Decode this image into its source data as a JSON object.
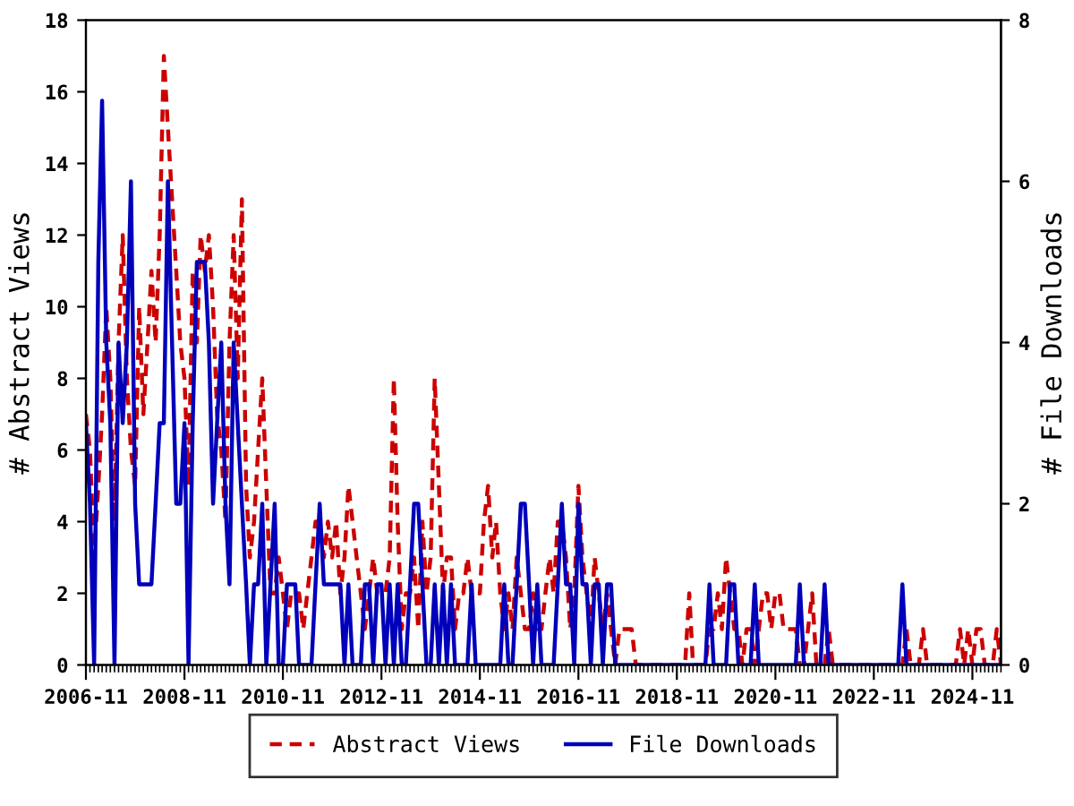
{
  "chart_data": {
    "type": "line",
    "ylabel": "# Abstract Views",
    "y2label": "# File Downloads",
    "x": [
      "2006-11",
      "2006-12",
      "2007-01",
      "2007-02",
      "2007-03",
      "2007-04",
      "2007-05",
      "2007-06",
      "2007-07",
      "2007-08",
      "2007-09",
      "2007-10",
      "2007-11",
      "2007-12",
      "2008-01",
      "2008-02",
      "2008-03",
      "2008-04",
      "2008-05",
      "2008-06",
      "2008-07",
      "2008-08",
      "2008-09",
      "2008-10",
      "2008-11",
      "2008-12",
      "2009-01",
      "2009-02",
      "2009-03",
      "2009-04",
      "2009-05",
      "2009-06",
      "2009-07",
      "2009-08",
      "2009-09",
      "2009-10",
      "2009-11",
      "2009-12",
      "2010-01",
      "2010-02",
      "2010-03",
      "2010-04",
      "2010-05",
      "2010-06",
      "2010-07",
      "2010-08",
      "2010-09",
      "2010-10",
      "2010-11",
      "2010-12",
      "2011-01",
      "2011-02",
      "2011-03",
      "2011-04",
      "2011-05",
      "2011-06",
      "2011-07",
      "2011-08",
      "2011-09",
      "2011-10",
      "2011-11",
      "2011-12",
      "2012-01",
      "2012-02",
      "2012-03",
      "2012-04",
      "2012-05",
      "2012-06",
      "2012-07",
      "2012-08",
      "2012-09",
      "2012-10",
      "2012-11",
      "2012-12",
      "2013-01",
      "2013-02",
      "2013-03",
      "2013-04",
      "2013-05",
      "2013-06",
      "2013-07",
      "2013-08",
      "2013-09",
      "2013-10",
      "2013-11",
      "2013-12",
      "2014-01",
      "2014-02",
      "2014-03",
      "2014-04",
      "2014-05",
      "2014-06",
      "2014-07",
      "2014-08",
      "2014-09",
      "2014-10",
      "2014-11",
      "2014-12",
      "2015-01",
      "2015-02",
      "2015-03",
      "2015-04",
      "2015-05",
      "2015-06",
      "2015-07",
      "2015-08",
      "2015-09",
      "2015-10",
      "2015-11",
      "2015-12",
      "2016-01",
      "2016-02",
      "2016-03",
      "2016-04",
      "2016-05",
      "2016-06",
      "2016-07",
      "2016-08",
      "2016-09",
      "2016-10",
      "2016-11",
      "2016-12",
      "2017-01",
      "2017-02",
      "2017-03",
      "2017-04",
      "2017-05",
      "2017-06",
      "2017-07",
      "2017-08",
      "2017-09",
      "2017-10",
      "2017-11",
      "2017-12",
      "2018-01",
      "2018-02",
      "2018-03",
      "2018-04",
      "2018-05",
      "2018-06",
      "2018-07",
      "2018-08",
      "2018-09",
      "2018-10",
      "2018-11",
      "2018-12",
      "2019-01",
      "2019-02",
      "2019-03",
      "2019-04",
      "2019-05",
      "2019-06",
      "2019-07",
      "2019-08",
      "2019-09",
      "2019-10",
      "2019-11",
      "2019-12",
      "2020-01",
      "2020-02",
      "2020-03",
      "2020-04",
      "2020-05",
      "2020-06",
      "2020-07",
      "2020-08",
      "2020-09",
      "2020-10",
      "2020-11",
      "2020-12",
      "2021-01",
      "2021-02",
      "2021-03",
      "2021-04",
      "2021-05",
      "2021-06",
      "2021-07",
      "2021-08",
      "2021-09",
      "2021-10",
      "2021-11",
      "2021-12",
      "2022-01",
      "2022-02",
      "2022-03",
      "2022-04",
      "2022-05",
      "2022-06",
      "2022-07",
      "2022-08",
      "2022-09",
      "2022-10",
      "2022-11",
      "2022-12",
      "2023-01",
      "2023-02",
      "2023-03",
      "2023-04",
      "2023-05",
      "2023-06",
      "2023-07",
      "2023-08",
      "2023-09",
      "2023-10",
      "2023-11",
      "2023-12",
      "2024-01",
      "2024-02",
      "2024-03",
      "2024-04",
      "2024-05",
      "2024-06",
      "2024-07",
      "2024-08",
      "2024-09",
      "2024-10",
      "2024-11",
      "2024-12",
      "2025-01",
      "2025-02",
      "2025-03",
      "2025-04",
      "2025-05",
      "2025-06"
    ],
    "series": [
      {
        "name": "Abstract Views",
        "color": "#cc0000",
        "line_style": "dashed",
        "values": [
          7,
          6,
          3,
          5,
          7,
          10,
          8,
          4,
          9,
          12,
          8,
          6,
          5,
          10,
          7,
          9,
          11,
          9,
          12,
          17,
          15,
          13,
          11,
          9,
          8,
          5,
          11,
          9,
          12,
          11,
          12,
          10,
          7,
          6,
          4,
          9,
          12,
          8,
          13,
          5,
          3,
          4,
          6,
          8,
          5,
          2,
          2,
          3,
          2,
          1,
          2,
          2,
          2,
          1,
          2,
          3,
          4,
          4,
          3,
          4,
          3,
          4,
          2,
          3,
          5,
          4,
          3,
          2,
          1,
          2,
          3,
          2,
          2,
          2,
          3,
          8,
          4,
          1,
          2,
          2,
          3,
          1,
          4,
          2,
          3,
          8,
          5,
          2,
          3,
          3,
          1,
          2,
          2,
          3,
          2,
          2,
          2,
          4,
          5,
          3,
          4,
          2,
          1,
          2,
          1,
          3,
          2,
          1,
          1,
          2,
          1,
          1,
          2,
          3,
          2,
          4,
          4,
          3,
          1,
          2,
          5,
          3,
          2,
          1,
          3,
          2,
          1,
          2,
          1,
          0,
          1,
          1,
          1,
          1,
          0,
          0,
          0,
          0,
          0,
          0,
          0,
          0,
          0,
          0,
          0,
          0,
          0,
          2,
          0,
          0,
          0,
          0,
          1,
          1,
          2,
          1,
          3,
          2,
          1,
          1,
          0,
          1,
          1,
          0,
          1,
          2,
          2,
          1,
          2,
          2,
          1,
          1,
          1,
          1,
          0,
          0,
          1,
          2,
          0,
          0,
          0,
          1,
          0,
          0,
          0,
          0,
          0,
          0,
          0,
          0,
          0,
          0,
          0,
          0,
          0,
          0,
          0,
          0,
          0,
          0,
          1,
          0,
          0,
          0,
          1,
          0,
          0,
          0,
          0,
          0,
          0,
          0,
          0,
          1,
          0,
          1,
          0,
          1,
          1,
          0,
          0,
          0,
          1,
          0
        ]
      },
      {
        "name": "File Downloads",
        "color": "#0000bb",
        "line_style": "solid",
        "axis": "y2",
        "values": [
          3,
          2,
          0,
          5,
          7,
          4,
          3,
          0,
          4,
          3,
          4,
          6,
          2,
          1,
          1,
          1,
          1,
          2,
          3,
          3,
          6,
          4,
          2,
          2,
          3,
          0,
          3,
          5,
          5,
          5,
          4,
          2,
          3,
          4,
          2,
          1,
          4,
          3,
          2,
          1,
          0,
          1,
          1,
          2,
          0,
          1,
          2,
          0,
          0,
          1,
          1,
          1,
          0,
          0,
          0,
          0,
          1,
          2,
          1,
          1,
          1,
          1,
          1,
          0,
          1,
          0,
          0,
          0,
          1,
          1,
          0,
          1,
          1,
          0,
          1,
          0,
          1,
          0,
          0,
          1,
          2,
          2,
          1,
          0,
          0,
          1,
          0,
          1,
          0,
          1,
          0,
          0,
          0,
          0,
          1,
          0,
          0,
          0,
          0,
          0,
          0,
          0,
          1,
          0,
          0,
          1,
          2,
          2,
          1,
          0,
          1,
          0,
          0,
          0,
          0,
          1,
          2,
          1,
          1,
          0,
          2,
          1,
          1,
          0,
          1,
          1,
          0,
          1,
          1,
          0,
          0,
          0,
          0,
          0,
          0,
          0,
          0,
          0,
          0,
          0,
          0,
          0,
          0,
          0,
          0,
          0,
          0,
          0,
          0,
          0,
          0,
          0,
          1,
          0,
          0,
          0,
          0,
          1,
          1,
          0,
          0,
          0,
          0,
          1,
          0,
          0,
          0,
          0,
          0,
          0,
          0,
          0,
          0,
          0,
          1,
          0,
          0,
          0,
          0,
          0,
          1,
          0,
          0,
          0,
          0,
          0,
          0,
          0,
          0,
          0,
          0,
          0,
          0,
          0,
          0,
          0,
          0,
          0,
          0,
          1,
          0,
          0,
          0,
          0,
          0,
          0,
          0,
          0,
          0,
          0,
          0,
          0,
          0,
          0,
          0,
          0,
          0,
          0,
          0,
          0,
          0,
          0,
          0,
          0
        ]
      }
    ],
    "xlim": [
      "2006-11",
      "2025-06"
    ],
    "xticks": [
      "2006-11",
      "2008-11",
      "2010-11",
      "2012-11",
      "2014-11",
      "2016-11",
      "2018-11",
      "2020-11",
      "2022-11",
      "2024-11"
    ],
    "ylim": [
      0,
      18
    ],
    "yticks": [
      0,
      2,
      4,
      6,
      8,
      10,
      12,
      14,
      16,
      18
    ],
    "y2lim": [
      0,
      8
    ],
    "y2ticks": [
      0,
      2,
      4,
      6,
      8
    ],
    "grid": false,
    "legend": "bottom",
    "marker": "none"
  }
}
